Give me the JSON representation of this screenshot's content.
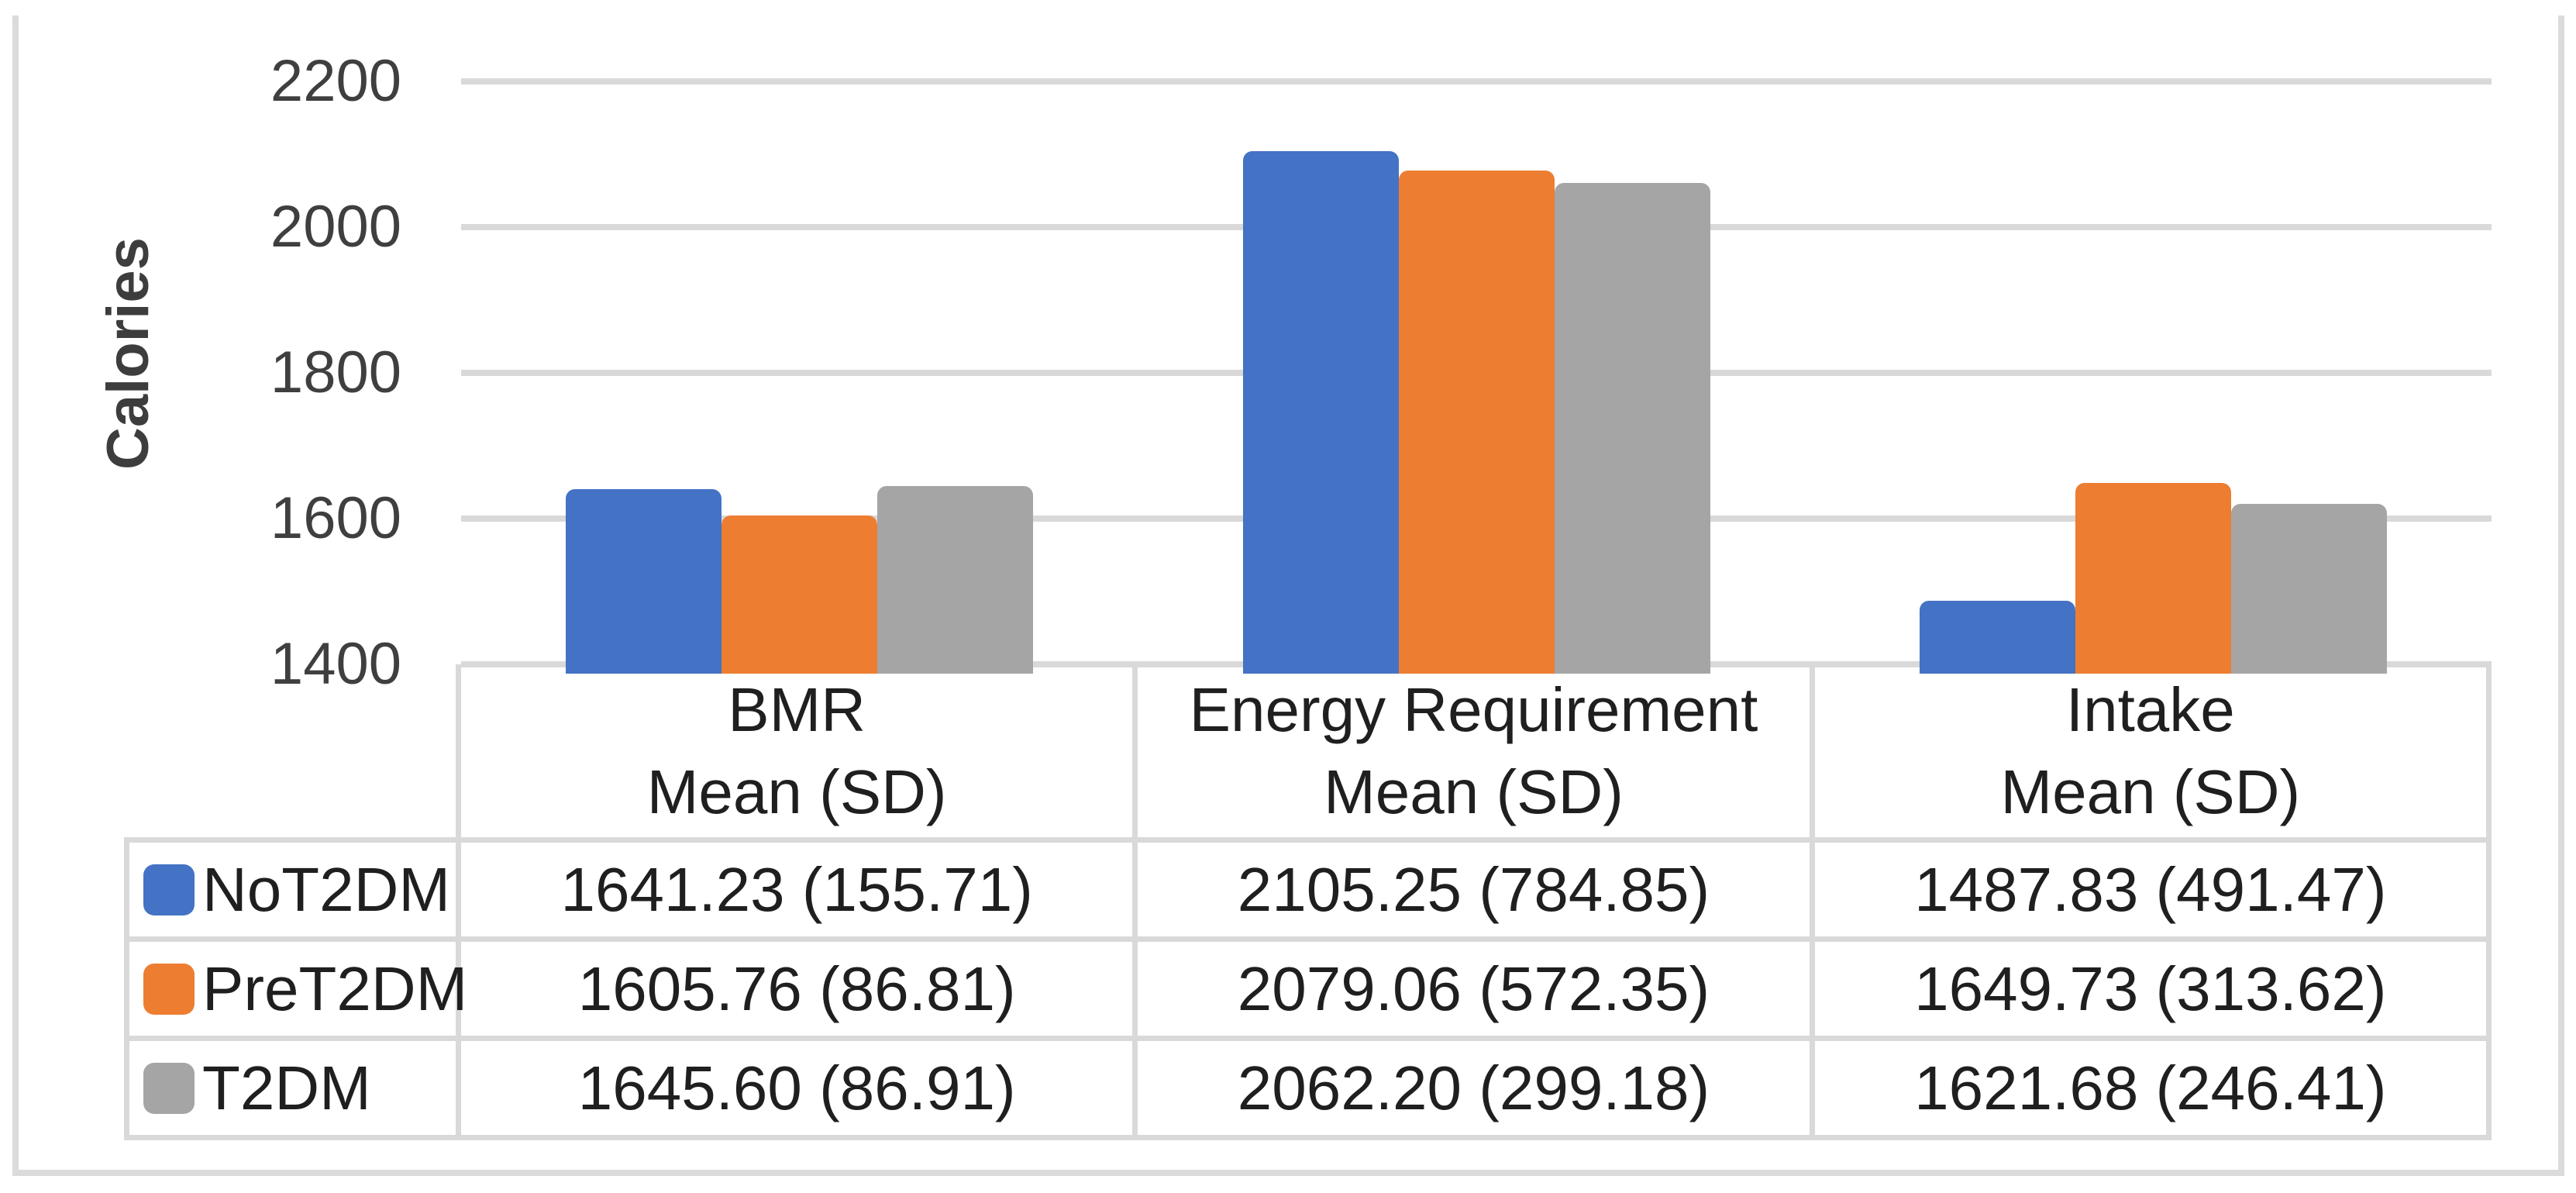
{
  "chart_data": {
    "type": "bar",
    "title": "",
    "ylabel": "Calories",
    "grid": true,
    "legend_position": "table-left",
    "y_axis": {
      "min": 1400,
      "max": 2200,
      "step": 200,
      "ticks": [
        2200,
        2000,
        1800,
        1600,
        1400
      ]
    },
    "categories": [
      {
        "title": "BMR",
        "subtitle": "Mean (SD)"
      },
      {
        "title": "Energy Requirement",
        "subtitle": "Mean (SD)"
      },
      {
        "title": "Intake",
        "subtitle": "Mean (SD)"
      }
    ],
    "series": [
      {
        "name": "NoT2DM",
        "color": "#4472C4",
        "values": [
          1641.23,
          2105.25,
          1487.83
        ],
        "sd": [
          155.71,
          784.85,
          491.47
        ]
      },
      {
        "name": "PreT2DM",
        "color": "#ED7D31",
        "values": [
          1605.76,
          2079.06,
          1649.73
        ],
        "sd": [
          86.81,
          572.35,
          313.62
        ]
      },
      {
        "name": "T2DM",
        "color": "#A5A5A5",
        "values": [
          1645.6,
          2062.2,
          1621.68
        ],
        "sd": [
          86.91,
          299.18,
          246.41
        ]
      }
    ],
    "colors": {
      "gridline": "#D9D9D9",
      "frame": "#DBDBDB",
      "axis_text": "#3F3F3F",
      "table_text": "#1F1F1F"
    }
  }
}
